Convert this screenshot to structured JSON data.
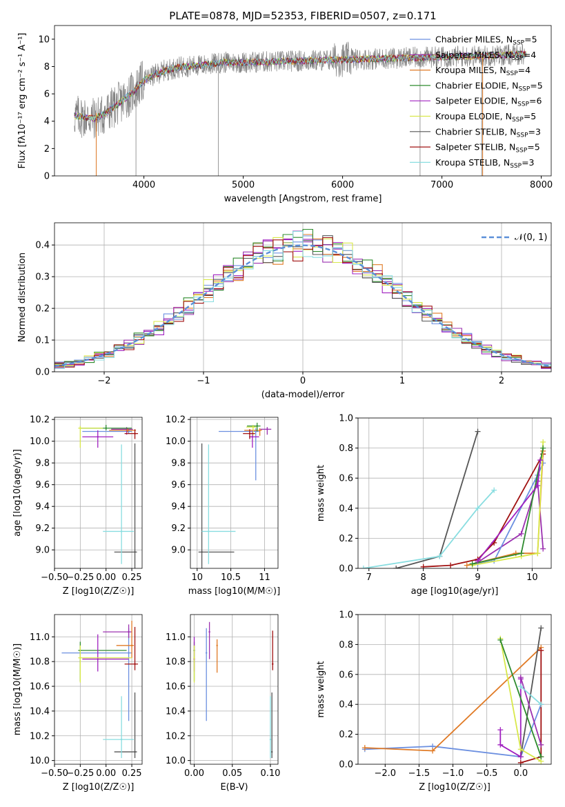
{
  "colors": {
    "chab_miles": "#6b8fe0",
    "salp_miles": "#9b30b0",
    "krou_miles": "#e07a25",
    "chab_elodie": "#2e8b2e",
    "salp_elodie": "#a020c0",
    "krou_elodie": "#d8e84a",
    "chab_stelib": "#555555",
    "salp_stelib": "#a01010",
    "krou_stelib": "#88dde0",
    "normal": "#5b8fd8",
    "spectrum": "#808080"
  },
  "chart_data": [
    {
      "id": "spectrum",
      "type": "line",
      "title": "PLATE=0878, MJD=52353, FIBERID=0507, z=0.171",
      "xlabel": "wavelength [Angstrom, rest frame]",
      "ylabel": "Flux [fλ10⁻¹⁷ erg cm⁻² s⁻¹ A⁻¹]",
      "xlim": [
        3100,
        8100
      ],
      "ylim": [
        0,
        11
      ],
      "xticks": [
        4000,
        5000,
        6000,
        7000,
        8000
      ],
      "yticks": [
        0,
        2,
        4,
        6,
        8,
        10
      ],
      "grid": false,
      "legend": "top-right",
      "series": [
        {
          "name": "Chabrier MILES, N_SSP=5",
          "color_key": "chab_miles"
        },
        {
          "name": "Salpeter MILES, N_SSP=4",
          "color_key": "salp_miles"
        },
        {
          "name": "Kroupa MILES, N_SSP=4",
          "color_key": "krou_miles"
        },
        {
          "name": "Chabrier ELODIE, N_SSP=5",
          "color_key": "chab_elodie"
        },
        {
          "name": "Salpeter ELODIE, N_SSP=6",
          "color_key": "salp_elodie"
        },
        {
          "name": "Kroupa ELODIE, N_SSP=5",
          "color_key": "krou_elodie"
        },
        {
          "name": "Chabrier STELIB, N_SSP=3",
          "color_key": "chab_stelib"
        },
        {
          "name": "Salpeter STELIB, N_SSP=5",
          "color_key": "salp_stelib"
        },
        {
          "name": "Kroupa STELIB, N_SSP=3",
          "color_key": "krou_stelib"
        }
      ],
      "continuum_x": [
        3300,
        3500,
        3600,
        3800,
        3900,
        4000,
        4200,
        4400,
        4600,
        4800,
        5000,
        5500,
        6000,
        6500,
        7000,
        7500,
        7800
      ],
      "continuum_y": [
        4.4,
        4.2,
        4.5,
        5.6,
        6.2,
        7.0,
        7.7,
        8.0,
        8.1,
        8.3,
        8.3,
        8.4,
        8.5,
        8.6,
        8.7,
        8.8,
        8.9
      ],
      "spikes": [
        [
          3520,
          0
        ],
        [
          3920,
          0
        ],
        [
          4750,
          0
        ],
        [
          6780,
          0
        ],
        [
          7400,
          0
        ]
      ]
    },
    {
      "id": "residuals",
      "type": "line",
      "xlabel": "(data-model)/error",
      "ylabel": "Normed distribution",
      "xlim": [
        -2.5,
        2.5
      ],
      "ylim": [
        0,
        0.47
      ],
      "xticks": [
        -2,
        -1,
        0,
        1,
        2
      ],
      "yticks": [
        0,
        0.1,
        0.2,
        0.3,
        0.4
      ],
      "grid": true,
      "legend": "top-right",
      "normal_label": "𝒩(0, 1)",
      "bin_width": 0.1
    },
    {
      "id": "z_age",
      "type": "scatter",
      "xlabel": "Z [log10(Z/Z☉)]",
      "ylabel": "age  [log10(age/yr)]",
      "xlim": [
        -0.5,
        0.35
      ],
      "ylim": [
        8.83,
        10.22
      ],
      "xticks": [
        -0.5,
        -0.25,
        0.0,
        0.25
      ],
      "xticklabels": [
        "−0.50",
        "−0.25",
        "0.00",
        "0.25"
      ],
      "yticks": [
        9.0,
        9.2,
        9.4,
        9.6,
        9.8,
        10.0,
        10.2
      ],
      "grid": true,
      "points": [
        {
          "c": "chab_miles",
          "x": 0.22,
          "y": 10.09,
          "xerr": [
            0.45,
            0.03
          ],
          "yerr": [
            0.02,
            0.02
          ]
        },
        {
          "c": "salp_miles",
          "x": 0.2,
          "y": 10.11,
          "xerr": [
            0.15,
            0.06
          ],
          "yerr": [
            0.05,
            0.02
          ]
        },
        {
          "c": "krou_miles",
          "x": 0.21,
          "y": 10.1,
          "xerr": [
            0.18,
            0.08
          ],
          "yerr": [
            0.02,
            0.02
          ]
        },
        {
          "c": "chab_elodie",
          "x": 0.0,
          "y": 10.12,
          "xerr": [
            0.25,
            0.25
          ],
          "yerr": [
            0.02,
            0.03
          ]
        },
        {
          "c": "salp_elodie",
          "x": -0.08,
          "y": 10.04,
          "xerr": [
            0.15,
            0.15
          ],
          "yerr": [
            0.1,
            0.06
          ]
        },
        {
          "c": "krou_elodie",
          "x": -0.25,
          "y": 10.12,
          "xerr": [
            0.02,
            0.22
          ],
          "yerr": [
            0.18,
            0.02
          ]
        },
        {
          "c": "chab_stelib",
          "x": 0.28,
          "y": 8.98,
          "xerr": [
            0.2,
            0.02
          ],
          "yerr": [
            0.15,
            1.0
          ]
        },
        {
          "c": "salp_stelib",
          "x": 0.28,
          "y": 10.07,
          "xerr": [
            0.1,
            0.03
          ],
          "yerr": [
            0.05,
            0.04
          ]
        },
        {
          "c": "krou_stelib",
          "x": 0.15,
          "y": 9.17,
          "xerr": [
            0.18,
            0.12
          ],
          "yerr": [
            0.3,
            0.8
          ]
        }
      ]
    },
    {
      "id": "mass_age",
      "type": "scatter",
      "xlabel": "mass [log10(M/M☉)]",
      "ylabel": "",
      "xlim": [
        9.9,
        11.2
      ],
      "ylim": [
        8.83,
        10.22
      ],
      "xticks": [
        10.0,
        10.5,
        11.0
      ],
      "yticks": [
        9.0,
        9.2,
        9.4,
        9.6,
        9.8,
        10.0,
        10.2
      ],
      "grid": true,
      "points": [
        {
          "c": "chab_miles",
          "x": 10.87,
          "y": 10.09,
          "xerr": [
            0.55,
            0.05
          ],
          "yerr": [
            0.45,
            0.03
          ]
        },
        {
          "c": "salp_miles",
          "x": 11.04,
          "y": 10.11,
          "xerr": [
            0.1,
            0.06
          ],
          "yerr": [
            0.05,
            0.02
          ]
        },
        {
          "c": "krou_miles",
          "x": 10.93,
          "y": 10.1,
          "xerr": [
            0.23,
            0.03
          ],
          "yerr": [
            0.05,
            0.02
          ]
        },
        {
          "c": "chab_elodie",
          "x": 10.89,
          "y": 10.14,
          "xerr": [
            0.15,
            0.05
          ],
          "yerr": [
            0.05,
            0.03
          ]
        },
        {
          "c": "salp_elodie",
          "x": 10.82,
          "y": 10.04,
          "xerr": [
            0.05,
            0.1
          ],
          "yerr": [
            0.1,
            0.06
          ]
        },
        {
          "c": "krou_elodie",
          "x": 10.83,
          "y": 10.13,
          "xerr": [
            0.1,
            0.05
          ],
          "yerr": [
            0.08,
            0.02
          ]
        },
        {
          "c": "chab_stelib",
          "x": 10.07,
          "y": 8.98,
          "xerr": [
            0.05,
            0.48
          ],
          "yerr": [
            0.15,
            1.0
          ]
        },
        {
          "c": "salp_stelib",
          "x": 10.78,
          "y": 10.07,
          "xerr": [
            0.1,
            0.08
          ],
          "yerr": [
            0.05,
            0.04
          ]
        },
        {
          "c": "krou_stelib",
          "x": 10.17,
          "y": 9.17,
          "xerr": [
            0.1,
            0.4
          ],
          "yerr": [
            0.3,
            0.8
          ]
        }
      ]
    },
    {
      "id": "age_weight",
      "type": "line",
      "xlabel": "age  [log10(age/yr)]",
      "ylabel": "mass weight",
      "xlim": [
        6.8,
        10.35
      ],
      "ylim": [
        0,
        1.0
      ],
      "xticks": [
        7,
        8,
        9,
        10
      ],
      "yticks": [
        0,
        0.2,
        0.4,
        0.6,
        0.8,
        1.0
      ],
      "grid": true,
      "series": [
        {
          "c": "chab_stelib",
          "x": [
            7.5,
            8.3,
            9.0
          ],
          "y": [
            0.0,
            0.08,
            0.91
          ]
        },
        {
          "c": "krou_stelib",
          "x": [
            6.9,
            8.3,
            9.0,
            9.3
          ],
          "y": [
            0.0,
            0.08,
            0.4,
            0.52
          ]
        },
        {
          "c": "salp_stelib",
          "x": [
            8.0,
            8.5,
            9.0,
            9.3,
            10.2
          ],
          "y": [
            0.01,
            0.02,
            0.06,
            0.17,
            0.76
          ]
        },
        {
          "c": "salp_miles",
          "x": [
            9.0,
            9.8,
            10.1,
            10.2
          ],
          "y": [
            0.04,
            0.23,
            0.58,
            0.13
          ]
        },
        {
          "c": "chab_miles",
          "x": [
            9.0,
            9.3,
            10.1,
            10.2
          ],
          "y": [
            0.03,
            0.05,
            0.62,
            0.7
          ]
        },
        {
          "c": "krou_miles",
          "x": [
            8.8,
            9.7,
            10.1,
            10.2
          ],
          "y": [
            0.02,
            0.1,
            0.1,
            0.78
          ]
        },
        {
          "c": "krou_elodie",
          "x": [
            8.9,
            9.8,
            10.1,
            10.2
          ],
          "y": [
            0.02,
            0.08,
            0.1,
            0.84
          ]
        },
        {
          "c": "chab_elodie",
          "x": [
            8.9,
            9.8,
            10.2
          ],
          "y": [
            0.03,
            0.1,
            0.8
          ]
        },
        {
          "c": "salp_elodie",
          "x": [
            9.0,
            10.1,
            10.15
          ],
          "y": [
            0.05,
            0.55,
            0.72
          ]
        }
      ]
    },
    {
      "id": "z_mass",
      "type": "scatter",
      "xlabel": "Z [log10(Z/Z☉)]",
      "ylabel": "mass [log10(M/M☉)]",
      "xlim": [
        -0.5,
        0.35
      ],
      "ylim": [
        9.97,
        11.18
      ],
      "xticks": [
        -0.5,
        -0.25,
        0.0,
        0.25
      ],
      "xticklabels": [
        "−0.50",
        "−0.25",
        "0.00",
        "0.25"
      ],
      "yticks": [
        10.0,
        10.2,
        10.4,
        10.6,
        10.8,
        11.0
      ],
      "grid": true,
      "points": [
        {
          "c": "chab_miles",
          "x": 0.22,
          "y": 10.87,
          "xerr": [
            0.65,
            0.03
          ],
          "yerr": [
            0.55,
            0.2
          ]
        },
        {
          "c": "salp_miles",
          "x": 0.22,
          "y": 11.04,
          "xerr": [
            0.25,
            0.03
          ],
          "yerr": [
            0.05,
            0.06
          ]
        },
        {
          "c": "krou_miles",
          "x": 0.25,
          "y": 10.93,
          "xerr": [
            0.15,
            0.02
          ],
          "yerr": [
            0.1,
            0.2
          ]
        },
        {
          "c": "chab_elodie",
          "x": -0.25,
          "y": 10.89,
          "xerr": [
            0.02,
            0.45
          ],
          "yerr": [
            0.25,
            0.07
          ]
        },
        {
          "c": "salp_elodie",
          "x": -0.08,
          "y": 10.82,
          "xerr": [
            0.15,
            0.3
          ],
          "yerr": [
            0.1,
            0.2
          ]
        },
        {
          "c": "krou_elodie",
          "x": -0.25,
          "y": 10.83,
          "xerr": [
            0.02,
            0.5
          ],
          "yerr": [
            0.2,
            0.1
          ]
        },
        {
          "c": "chab_stelib",
          "x": 0.28,
          "y": 10.07,
          "xerr": [
            0.2,
            0.02
          ],
          "yerr": [
            0.05,
            0.48
          ]
        },
        {
          "c": "salp_stelib",
          "x": 0.28,
          "y": 10.78,
          "xerr": [
            0.1,
            0.03
          ],
          "yerr": [
            0.05,
            0.3
          ]
        },
        {
          "c": "krou_stelib",
          "x": 0.15,
          "y": 10.17,
          "xerr": [
            0.18,
            0.12
          ],
          "yerr": [
            0.15,
            0.35
          ]
        }
      ]
    },
    {
      "id": "ebv_mass",
      "type": "scatter",
      "xlabel": "E(B-V)",
      "ylabel": "",
      "xlim": [
        -0.005,
        0.11
      ],
      "ylim": [
        9.97,
        11.18
      ],
      "xticks": [
        0.0,
        0.05,
        0.1
      ],
      "xticklabels": [
        "0.00",
        "0.05",
        "0.10"
      ],
      "yticks": [
        10.0,
        10.2,
        10.4,
        10.6,
        10.8,
        11.0
      ],
      "grid": true,
      "points": [
        {
          "c": "chab_miles",
          "x": 0.016,
          "y": 10.87,
          "yerr": [
            0.55,
            0.2
          ]
        },
        {
          "c": "salp_miles",
          "x": 0.02,
          "y": 11.04,
          "yerr": [
            0.22,
            0.08
          ]
        },
        {
          "c": "krou_miles",
          "x": 0.03,
          "y": 10.93,
          "yerr": [
            0.22,
            0.05
          ]
        },
        {
          "c": "chab_elodie",
          "x": 0.0,
          "y": 10.89,
          "yerr": [
            0.25,
            0.07
          ]
        },
        {
          "c": "salp_elodie",
          "x": 0.0,
          "y": 10.82,
          "yerr": [
            0.1,
            0.18
          ]
        },
        {
          "c": "krou_elodie",
          "x": 0.0,
          "y": 10.83,
          "yerr": [
            0.2,
            0.1
          ]
        },
        {
          "c": "chab_stelib",
          "x": 0.102,
          "y": 10.07,
          "yerr": [
            0.05,
            0.48
          ]
        },
        {
          "c": "salp_stelib",
          "x": 0.103,
          "y": 10.78,
          "yerr": [
            0.05,
            0.27
          ]
        },
        {
          "c": "krou_stelib",
          "x": 0.1,
          "y": 10.17,
          "yerr": [
            0.15,
            0.35
          ]
        }
      ]
    },
    {
      "id": "z_weight",
      "type": "line",
      "xlabel": "Z [log10(Z/Z☉)]",
      "ylabel": "mass weight",
      "xlim": [
        -2.4,
        0.45
      ],
      "ylim": [
        0,
        1.0
      ],
      "xticks": [
        -2.0,
        -1.5,
        -1.0,
        -0.5,
        0.0
      ],
      "xticklabels": [
        "−2.0",
        "−1.5",
        "−1.0",
        "−0.5",
        "0.0"
      ],
      "yticks": [
        0,
        0.2,
        0.4,
        0.6,
        0.8,
        1.0
      ],
      "grid": true,
      "series": [
        {
          "c": "chab_miles",
          "x": [
            -2.3,
            -1.3,
            0.0,
            0.3
          ],
          "y": [
            0.1,
            0.12,
            0.05,
            0.4
          ]
        },
        {
          "c": "krou_miles",
          "x": [
            -2.3,
            -1.3,
            0.3
          ],
          "y": [
            0.11,
            0.09,
            0.78
          ]
        },
        {
          "c": "chab_stelib",
          "x": [
            0.0,
            0.3
          ],
          "y": [
            0.05,
            0.91
          ]
        },
        {
          "c": "salp_stelib",
          "x": [
            0.0,
            0.3,
            0.3
          ],
          "y": [
            0.01,
            0.05,
            0.76
          ]
        },
        {
          "c": "salp_elodie",
          "x": [
            -0.3,
            -0.3,
            0.0,
            0.0
          ],
          "y": [
            0.23,
            0.13,
            0.05,
            0.57
          ]
        },
        {
          "c": "krou_elodie",
          "x": [
            -0.3,
            0.0,
            0.3
          ],
          "y": [
            0.84,
            0.1,
            0.02
          ]
        },
        {
          "c": "chab_elodie",
          "x": [
            -0.3,
            0.3
          ],
          "y": [
            0.83,
            0.05
          ]
        },
        {
          "c": "salp_miles",
          "x": [
            0.0,
            0.3
          ],
          "y": [
            0.58,
            0.13
          ]
        },
        {
          "c": "krou_stelib",
          "x": [
            0.0,
            0.3
          ],
          "y": [
            0.52,
            0.4
          ]
        }
      ]
    }
  ]
}
